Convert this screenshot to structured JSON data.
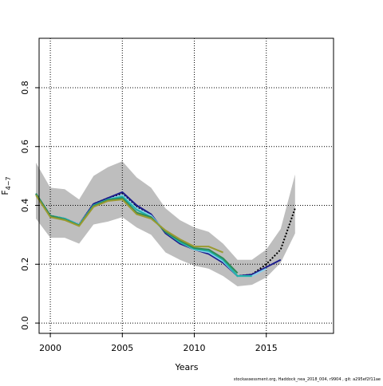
{
  "chart_data": {
    "type": "line",
    "x_label": "Years",
    "y_label": {
      "main": "F",
      "sub": "4−7"
    },
    "footer": "stockassessment.org, Haddock_nea_2018_004, r9904 , git: a295ef2f11ae",
    "x": [
      1999,
      2000,
      2001,
      2002,
      2003,
      2004,
      2005,
      2006,
      2007,
      2008,
      2009,
      2010,
      2011,
      2012,
      2013,
      2014,
      2015,
      2016,
      2017
    ],
    "band": {
      "color": "#bebebe",
      "upper": [
        0.545,
        0.46,
        0.455,
        0.42,
        0.5,
        0.53,
        0.55,
        0.495,
        0.46,
        0.39,
        0.35,
        0.325,
        0.31,
        0.27,
        0.215,
        0.215,
        0.25,
        0.32,
        0.505
      ],
      "lower": [
        0.355,
        0.29,
        0.29,
        0.27,
        0.335,
        0.345,
        0.36,
        0.325,
        0.3,
        0.24,
        0.215,
        0.195,
        0.185,
        0.16,
        0.125,
        0.13,
        0.155,
        0.205,
        0.305
      ]
    },
    "series": [
      {
        "color": "#000000",
        "dashed": true,
        "values": [
          0.44,
          0.365,
          0.355,
          0.335,
          0.405,
          0.425,
          0.44,
          0.395,
          0.365,
          0.31,
          0.275,
          0.25,
          0.24,
          0.21,
          0.16,
          0.165,
          0.2,
          0.25,
          0.39
        ]
      },
      {
        "color": "#1c1c8c",
        "values": [
          0.44,
          0.365,
          0.355,
          0.335,
          0.405,
          0.425,
          0.445,
          0.4,
          0.37,
          0.305,
          0.27,
          0.25,
          0.235,
          0.205,
          0.16,
          0.165,
          0.19,
          0.215,
          null
        ]
      },
      {
        "color": "#87ceeb",
        "values": [
          0.44,
          0.365,
          0.355,
          0.335,
          0.4,
          0.42,
          0.435,
          0.39,
          0.365,
          0.31,
          0.275,
          0.25,
          0.24,
          0.21,
          0.16,
          0.16,
          0.185,
          null,
          null
        ]
      },
      {
        "color": "#20b2aa",
        "values": [
          0.44,
          0.365,
          0.355,
          0.333,
          0.4,
          0.42,
          0.43,
          0.385,
          0.36,
          0.31,
          0.275,
          0.252,
          0.245,
          0.215,
          0.16,
          0.16,
          null,
          null,
          null
        ]
      },
      {
        "color": "#2e8b57",
        "values": [
          0.44,
          0.365,
          0.352,
          0.332,
          0.398,
          0.418,
          0.425,
          0.375,
          0.36,
          0.31,
          0.28,
          0.255,
          0.25,
          0.22,
          0.17,
          null,
          null,
          null,
          null
        ]
      },
      {
        "color": "#9a9a30",
        "values": [
          0.435,
          0.36,
          0.35,
          0.33,
          0.395,
          0.415,
          0.42,
          0.37,
          0.355,
          0.315,
          0.285,
          0.26,
          0.26,
          0.24,
          null,
          null,
          null,
          null,
          null
        ]
      }
    ],
    "xlim": [
      1999.22,
      2019.67
    ],
    "ylim": [
      -0.035,
      0.968
    ],
    "xticks": [
      2000,
      2005,
      2010,
      2015
    ],
    "yticks": [
      {
        "value": 0,
        "label": "0.0"
      },
      0.2,
      0.4,
      0.6,
      0.8
    ],
    "grid": true
  }
}
